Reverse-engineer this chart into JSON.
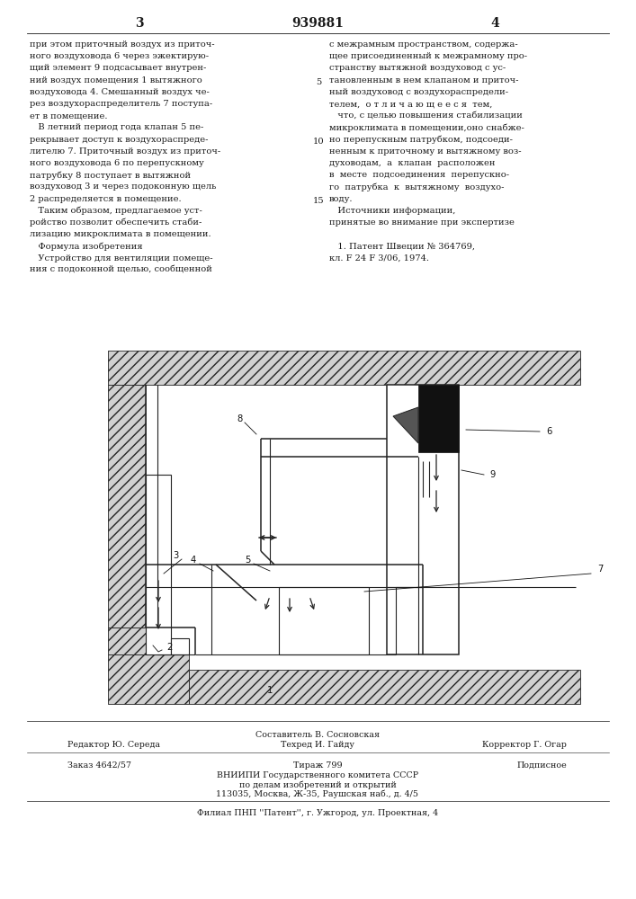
{
  "page_number_left": "3",
  "patent_number": "939881",
  "page_number_right": "4",
  "background_color": "#ffffff",
  "text_color": "#1a1a1a",
  "left_column_text": [
    "при этом приточный воздух из приточ-",
    "ного воздуховода 6 через эжектирую-",
    "щий элемент 9 подсасывает внутрен-",
    "ний воздух помещения 1 вытяжного",
    "воздуховода 4. Смешанный воздух че-",
    "рез воздухораспределитель 7 поступа-",
    "ет в помещение.",
    "   В летний период года клапан 5 пе-",
    "рекрывает доступ к воздухораспреде-",
    "лителю 7. Приточный воздух из приточ-",
    "ного воздуховода 6 по перепускному",
    "патрубку 8 поступает в вытяжной",
    "воздуховод 3 и через подоконную щель",
    "2 распределяется в помещение.",
    "   Таким образом, предлагаемое уст-",
    "ройство позволит обеспечить стаби-",
    "лизацию микроклимата в помещении.",
    "   Формула изобретения",
    "   Устройство для вентиляции помеще-",
    "ния с подоконной щелью, сообщенной"
  ],
  "right_column_text": [
    "с межрамным пространством, содержа-",
    "щее присоединенный к межрамному про-",
    "странству вытяжной воздуховод с ус-",
    "тановленным в нем клапаном и приточ-",
    "ный воздуховод с воздухораспредели-",
    "телем,  о т л и ч а ю щ е е с я  тем,",
    "   что, с целью повышения стабилизации",
    "микроклимата в помещении,оно снабже-",
    "но перепускным патрубком, подсоеди-",
    "ненным к приточному и вытяжному воз-",
    "духоводам,  а  клапан  расположен",
    "в  месте  подсоединения  перепускно-",
    "го  патрубка  к  вытяжному  воздухо-",
    "воду.",
    "   Источники информации,",
    "принятые во внимание при экспертизе",
    "",
    "   1. Патент Швеции № 364769,",
    "кл. F 24 F 3/06, 1974."
  ],
  "footer_editor": "Редактор Ю. Середа",
  "footer_compiler": "Составитель В. Сосновская",
  "footer_tech": "Техред И. Гайду",
  "footer_corrector": "Корректор Г. Огар",
  "footer_order": "Заказ 4642/57",
  "footer_tirazh": "Тираж 799",
  "footer_podp": "Подписное",
  "footer_vniipи": "ВНИИПИ Государственного комитета СССР",
  "footer_dela": "по делам изобретений и открытий",
  "footer_addr": "113035, Москва, Ж-35, Раушская наб., д. 4/5",
  "footer_filial": "Филиал ПНП ''Патент'', г. Ужгород, ул. Проектная, 4"
}
